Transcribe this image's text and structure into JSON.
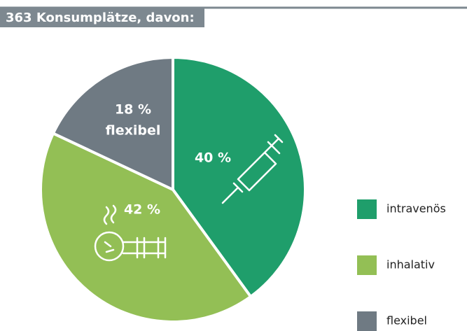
{
  "chart_data": {
    "type": "pie",
    "title": "363 Konsumplätze, davon:",
    "categories": [
      "intravenös",
      "inhalativ",
      "flexibel"
    ],
    "values": [
      40,
      42,
      18
    ],
    "value_labels": [
      "40 %",
      "42 %",
      "18 %"
    ],
    "colors": [
      "#1f9e6b",
      "#93bf55",
      "#6f7a83"
    ]
  }
}
